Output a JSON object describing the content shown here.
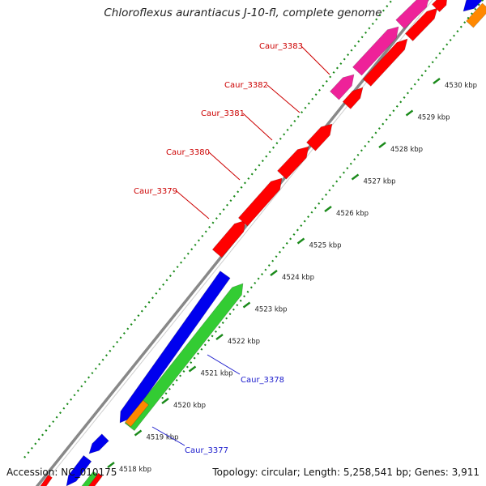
{
  "title": "Chloroflexus aurantiacus J-10-fl, complete genome",
  "accession": "Accession: NC_010175",
  "summary": "Topology: circular; Length: 5,258,541 bp; Genes: 3,911",
  "kbp_labels": [
    "4518 kbp",
    "4519 kbp",
    "4520 kbp",
    "4521 kbp",
    "4522 kbp",
    "4523 kbp",
    "4524 kbp",
    "4525 kbp",
    "4526 kbp",
    "4527 kbp",
    "4528 kbp",
    "4529 kbp",
    "4530 kbp"
  ],
  "gene_labels": [
    {
      "text": "Caur_3383",
      "color": "#cc0000"
    },
    {
      "text": "Caur_3382",
      "color": "#cc0000"
    },
    {
      "text": "Caur_3381",
      "color": "#cc0000"
    },
    {
      "text": "Caur_3380",
      "color": "#cc0000"
    },
    {
      "text": "Caur_3379",
      "color": "#cc0000"
    },
    {
      "text": "Caur_3378",
      "color": "#1a1acc"
    },
    {
      "text": "Caur_3377",
      "color": "#1a1acc"
    }
  ],
  "colors": {
    "backbone": "#888888",
    "ticks": "#1a8a1a",
    "red": "#ff0000",
    "pink": "#ee2299",
    "blue": "#0000ee",
    "green": "#33cc33",
    "orange": "#ff8800"
  }
}
